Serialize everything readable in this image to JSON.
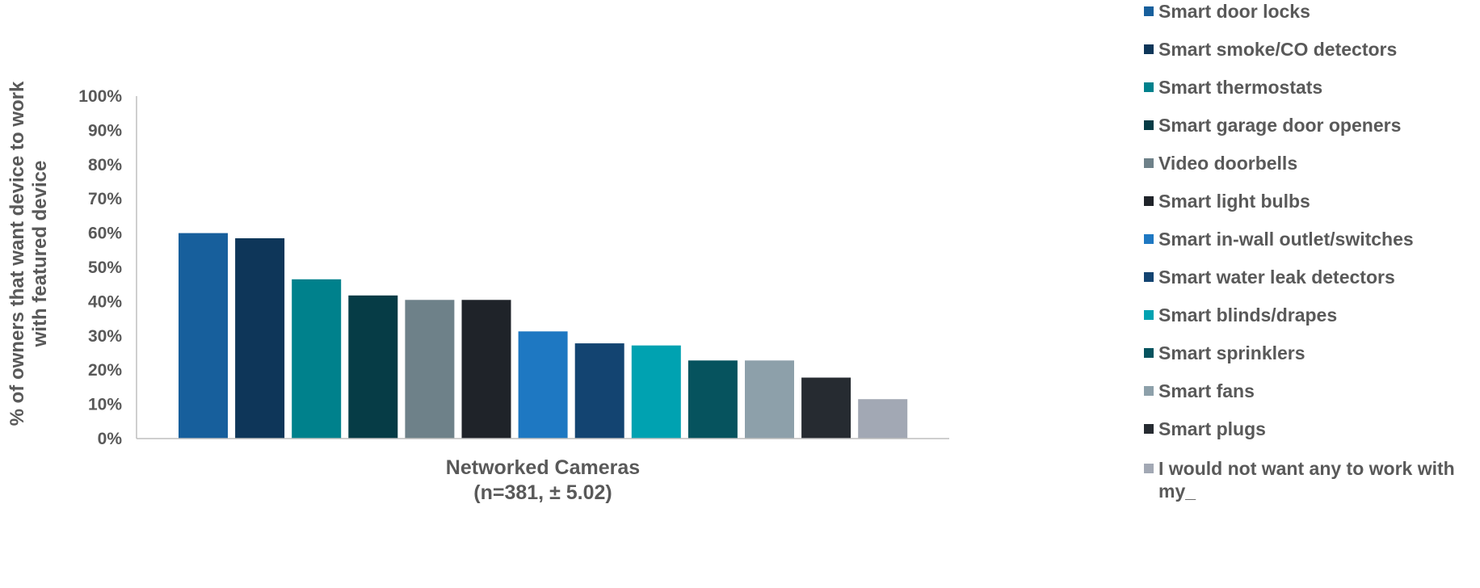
{
  "chart_data": {
    "type": "bar",
    "title": "",
    "xlabel": "Networked Cameras",
    "xlabel_line2": "(n=381, ± 5.02)",
    "ylabel_line1": "% of owners that want device to work",
    "ylabel_line2": "with featured device",
    "ylim": [
      0,
      100
    ],
    "yticks": [
      "0%",
      "10%",
      "20%",
      "30%",
      "40%",
      "50%",
      "60%",
      "70%",
      "80%",
      "90%",
      "100%"
    ],
    "grid": false,
    "legend_position": "right",
    "categories": [
      "Networked Cameras"
    ],
    "series": [
      {
        "name": "Smart door locks",
        "values": [
          60
        ],
        "color": "#175F9C"
      },
      {
        "name": "Smart smoke/CO detectors",
        "values": [
          58.5
        ],
        "color": "#0E3659"
      },
      {
        "name": "Smart thermostats",
        "values": [
          46.5
        ],
        "color": "#00818C"
      },
      {
        "name": "Smart garage door openers",
        "values": [
          41.8
        ],
        "color": "#063C46"
      },
      {
        "name": "Video doorbells",
        "values": [
          40.5
        ],
        "color": "#6E8189"
      },
      {
        "name": "Smart light bulbs",
        "values": [
          40.5
        ],
        "color": "#1F2329"
      },
      {
        "name": "Smart in-wall outlet/switches",
        "values": [
          31.3
        ],
        "color": "#1E78C2"
      },
      {
        "name": "Smart water leak detectors",
        "values": [
          27.8
        ],
        "color": "#134471"
      },
      {
        "name": "Smart blinds/drapes",
        "values": [
          27.2
        ],
        "color": "#00A2B1"
      },
      {
        "name": "Smart sprinklers",
        "values": [
          22.8
        ],
        "color": "#06535E"
      },
      {
        "name": "Smart fans",
        "values": [
          22.8
        ],
        "color": "#8DA0AA"
      },
      {
        "name": "Smart plugs",
        "values": [
          17.8
        ],
        "color": "#262B31"
      },
      {
        "name": "I would not want any to work with my_",
        "values": [
          11.5
        ],
        "color": "#A2A8B4"
      }
    ]
  }
}
